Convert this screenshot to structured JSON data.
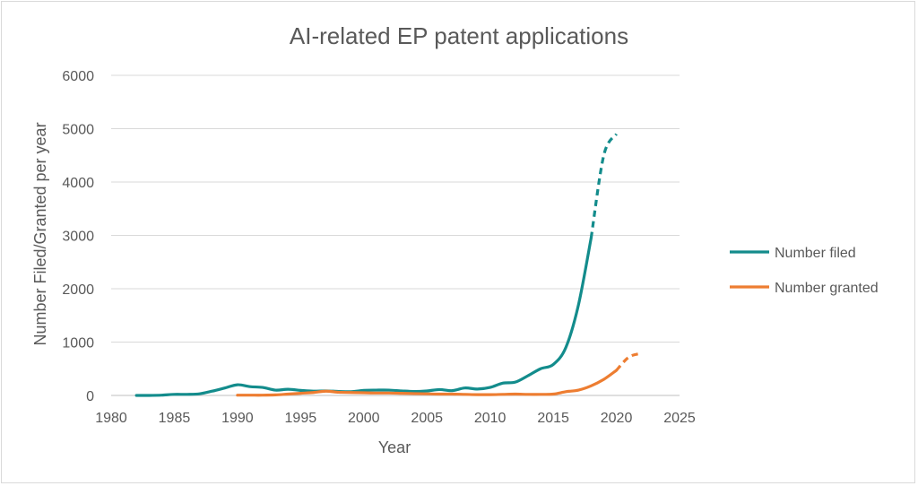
{
  "chart_data": {
    "type": "line",
    "title": "AI-related EP patent applications",
    "xlabel": "Year",
    "ylabel": "Number Filed/Granted per year",
    "xlim": [
      1980,
      2025
    ],
    "ylim": [
      0,
      6000
    ],
    "xticks": [
      1980,
      1985,
      1990,
      1995,
      2000,
      2005,
      2010,
      2015,
      2020,
      2025
    ],
    "yticks": [
      0,
      1000,
      2000,
      3000,
      4000,
      5000,
      6000
    ],
    "grid": "horizontal",
    "legend": "right",
    "series": [
      {
        "name": "Number filed",
        "color": "#138c8c",
        "solid": [
          [
            1982,
            0
          ],
          [
            1983,
            0
          ],
          [
            1984,
            5
          ],
          [
            1985,
            20
          ],
          [
            1986,
            20
          ],
          [
            1987,
            30
          ],
          [
            1988,
            80
          ],
          [
            1989,
            140
          ],
          [
            1990,
            200
          ],
          [
            1991,
            165
          ],
          [
            1992,
            150
          ],
          [
            1993,
            100
          ],
          [
            1994,
            115
          ],
          [
            1995,
            95
          ],
          [
            1996,
            80
          ],
          [
            1997,
            85
          ],
          [
            1998,
            75
          ],
          [
            1999,
            70
          ],
          [
            2000,
            95
          ],
          [
            2001,
            100
          ],
          [
            2002,
            100
          ],
          [
            2003,
            85
          ],
          [
            2004,
            75
          ],
          [
            2005,
            85
          ],
          [
            2006,
            110
          ],
          [
            2007,
            90
          ],
          [
            2008,
            140
          ],
          [
            2009,
            120
          ],
          [
            2010,
            150
          ],
          [
            2011,
            230
          ],
          [
            2012,
            250
          ],
          [
            2013,
            370
          ],
          [
            2014,
            500
          ],
          [
            2015,
            580
          ],
          [
            2016,
            900
          ],
          [
            2017,
            1700
          ],
          [
            2018,
            2950
          ]
        ],
        "projected": [
          [
            2018,
            2950
          ],
          [
            2019,
            4500
          ],
          [
            2020,
            4900
          ]
        ]
      },
      {
        "name": "Number granted",
        "color": "#ed7d31",
        "solid": [
          [
            1990,
            5
          ],
          [
            1991,
            5
          ],
          [
            1992,
            5
          ],
          [
            1993,
            10
          ],
          [
            1994,
            25
          ],
          [
            1995,
            40
          ],
          [
            1996,
            55
          ],
          [
            1997,
            80
          ],
          [
            1998,
            60
          ],
          [
            1999,
            55
          ],
          [
            2000,
            50
          ],
          [
            2001,
            45
          ],
          [
            2002,
            45
          ],
          [
            2003,
            40
          ],
          [
            2004,
            35
          ],
          [
            2005,
            30
          ],
          [
            2006,
            25
          ],
          [
            2007,
            25
          ],
          [
            2008,
            20
          ],
          [
            2009,
            15
          ],
          [
            2010,
            15
          ],
          [
            2011,
            20
          ],
          [
            2012,
            25
          ],
          [
            2013,
            20
          ],
          [
            2014,
            20
          ],
          [
            2015,
            25
          ],
          [
            2016,
            70
          ],
          [
            2017,
            100
          ],
          [
            2018,
            180
          ],
          [
            2019,
            300
          ],
          [
            2020,
            470
          ]
        ],
        "projected": [
          [
            2020,
            470
          ],
          [
            2021,
            720
          ],
          [
            2022,
            790
          ]
        ]
      }
    ]
  }
}
